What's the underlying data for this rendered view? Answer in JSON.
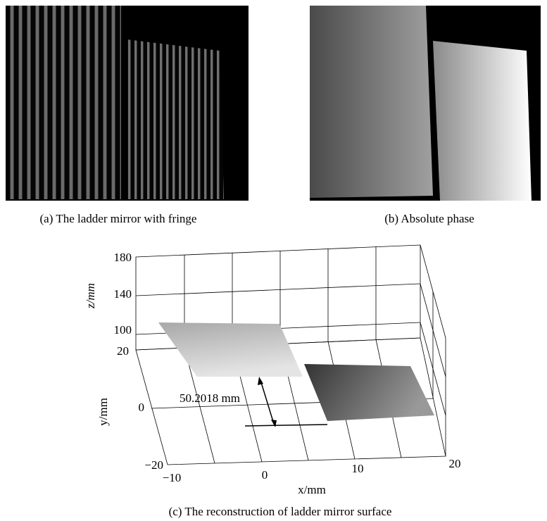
{
  "panels": [
    {
      "caption": "(a) The ladder mirror with fringe"
    },
    {
      "caption": "(b) Absolute phase"
    },
    {
      "caption": "(c) The reconstruction of ladder mirror surface",
      "z_label": "z/mm",
      "y_label": "y/mm",
      "x_label": "x/mm",
      "z_ticks": [
        "180",
        "140",
        "100"
      ],
      "y_ticks": [
        "20",
        "0",
        "−20"
      ],
      "x_ticks": [
        "−10",
        "0",
        "10",
        "20"
      ],
      "annotation": "50.2018 mm"
    }
  ]
}
